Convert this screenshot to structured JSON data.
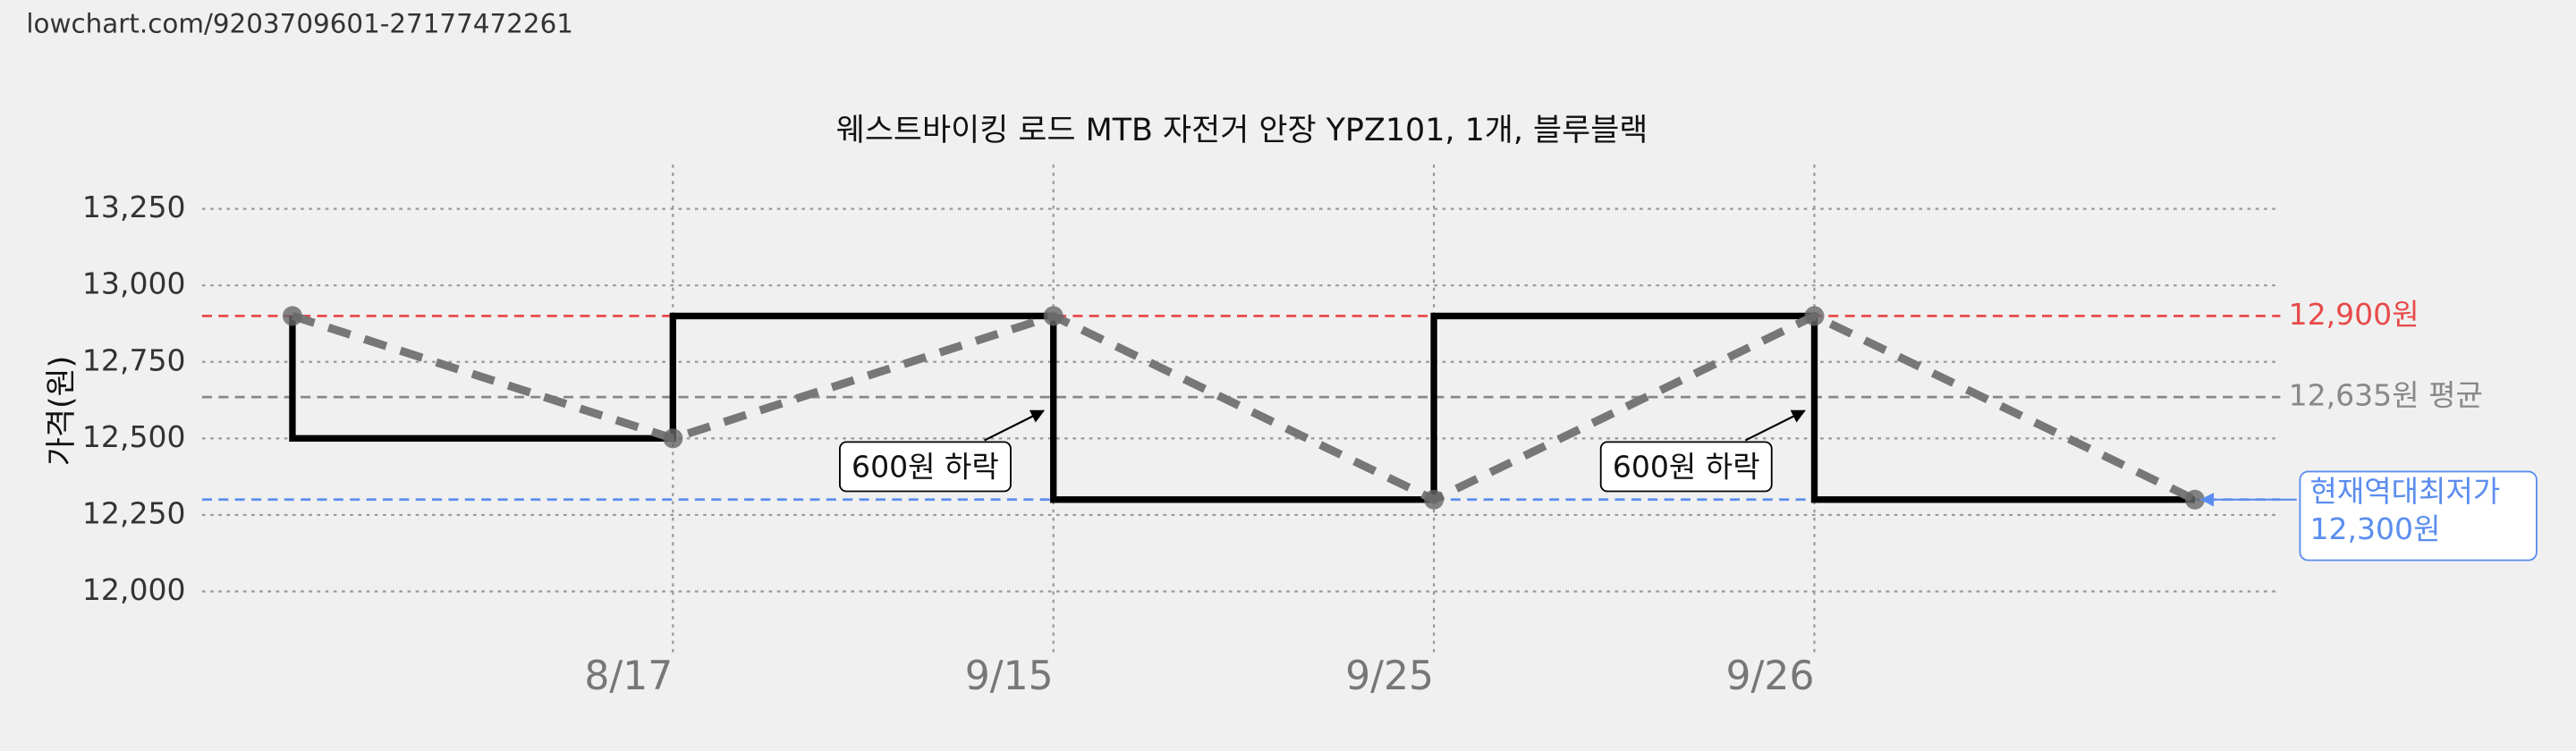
{
  "url": "lowchart.com/9203709601-27177472261",
  "chart_data": {
    "type": "step-line",
    "title": "웨스트바이킹 로드 MTB 자전거 안장 YPZ101, 1개, 블루블랙",
    "ylabel": "가격(원)",
    "categories": [
      null,
      "8/17",
      "9/15",
      "9/25",
      "9/26",
      null
    ],
    "values": [
      12900,
      12500,
      12900,
      12300,
      12900,
      12300
    ],
    "step": "pre",
    "step_color": "#000000",
    "line_color": "#777777",
    "ylim": [
      11796,
      13395
    ],
    "yticks": [
      {
        "value": 12000,
        "label": "12,000"
      },
      {
        "value": 12250,
        "label": "12,250"
      },
      {
        "value": 12500,
        "label": "12,500"
      },
      {
        "value": 12750,
        "label": "12,750"
      },
      {
        "value": 13000,
        "label": "13,000"
      },
      {
        "value": 13250,
        "label": "13,250"
      }
    ],
    "grid": true,
    "hlines": [
      {
        "value": 12900,
        "label": "12,900원",
        "color": "#e84a4a"
      },
      {
        "value": 12635,
        "label": "12,635원 평균",
        "color": "#888888"
      },
      {
        "value": 12300,
        "color": "#5b8def"
      }
    ],
    "annotations": [
      {
        "text": "600원 하락",
        "x": "9/15"
      },
      {
        "text": "600원 하락",
        "x": "9/26"
      }
    ],
    "low_box": {
      "lines": [
        "현재역대최저가",
        "12,300원"
      ]
    }
  }
}
